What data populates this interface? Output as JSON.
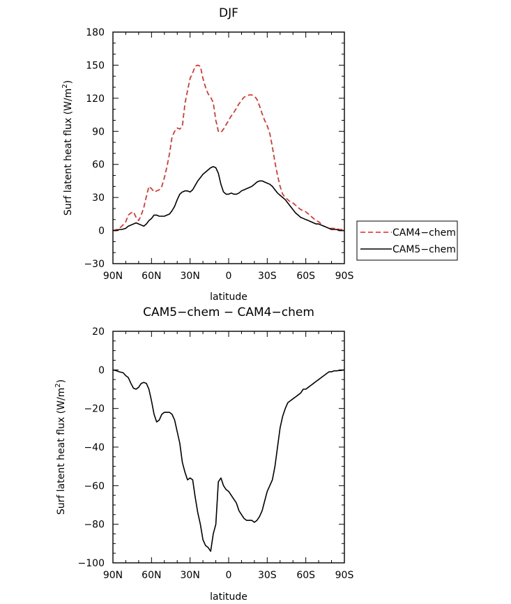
{
  "chart_data": [
    {
      "type": "line",
      "title": "DJF",
      "xlabel": "latitude",
      "ylabel": "Surf latent heat flux (W/m²)",
      "ylabel_main": "Surf latent heat flux (W/m",
      "ylabel_sup": "2",
      "ylabel_end": ")",
      "xlim": [
        90,
        -90
      ],
      "ylim": [
        -30,
        180
      ],
      "xticks": [
        90,
        60,
        30,
        0,
        -30,
        -60,
        -90
      ],
      "xtick_labels": [
        "90N",
        "60N",
        "30N",
        "0",
        "30S",
        "60S",
        "90S"
      ],
      "yticks": [
        -30,
        0,
        30,
        60,
        90,
        120,
        150,
        180
      ],
      "ytick_labels": [
        "−30",
        "0",
        "30",
        "60",
        "90",
        "120",
        "150",
        "180"
      ],
      "legend": {
        "placement": "right",
        "entries": [
          "CAM4−chem",
          "CAM5−chem"
        ]
      },
      "series": [
        {
          "name": "CAM4−chem",
          "color": "#e8211c",
          "dash": "dashed",
          "x": [
            90,
            87,
            85,
            83,
            80,
            78,
            76,
            74,
            72,
            70,
            68,
            66,
            64,
            62,
            60,
            58,
            56,
            54,
            52,
            50,
            48,
            46,
            44,
            42,
            40,
            38,
            36,
            34,
            32,
            30,
            28,
            26,
            24,
            22,
            20,
            18,
            16,
            14,
            12,
            10,
            8,
            6,
            4,
            2,
            0,
            -2,
            -4,
            -6,
            -8,
            -10,
            -12,
            -14,
            -16,
            -18,
            -20,
            -22,
            -24,
            -26,
            -28,
            -30,
            -32,
            -34,
            -36,
            -38,
            -40,
            -42,
            -44,
            -46,
            -48,
            -50,
            -52,
            -54,
            -56,
            -58,
            -60,
            -62,
            -64,
            -66,
            -68,
            -70,
            -72,
            -74,
            -76,
            -78,
            -80,
            -82,
            -84,
            -86,
            -88,
            -90
          ],
          "values": [
            0,
            1,
            2,
            4,
            8,
            14,
            16,
            17,
            12,
            9,
            14,
            21,
            31,
            40,
            38,
            35,
            36,
            37,
            40,
            48,
            58,
            70,
            85,
            90,
            93,
            92,
            95,
            115,
            127,
            138,
            143,
            149,
            150,
            149,
            138,
            130,
            124,
            121,
            116,
            100,
            90,
            89,
            92,
            96,
            100,
            104,
            107,
            111,
            115,
            118,
            121,
            122,
            123,
            123,
            122,
            119,
            113,
            106,
            100,
            95,
            88,
            76,
            62,
            50,
            40,
            33,
            30,
            28,
            26,
            25,
            23,
            21,
            19,
            18,
            17,
            15,
            13,
            11,
            9,
            8,
            6,
            4,
            3,
            2,
            2,
            2,
            2,
            1,
            1,
            0
          ]
        },
        {
          "name": "CAM5−chem",
          "color": "#000000",
          "dash": "solid",
          "x": [
            90,
            87,
            85,
            83,
            80,
            78,
            76,
            74,
            72,
            70,
            68,
            66,
            64,
            62,
            60,
            58,
            56,
            54,
            52,
            50,
            48,
            46,
            44,
            42,
            40,
            38,
            36,
            34,
            32,
            30,
            28,
            26,
            24,
            22,
            20,
            18,
            16,
            14,
            12,
            10,
            8,
            6,
            4,
            2,
            0,
            -2,
            -4,
            -6,
            -8,
            -10,
            -12,
            -14,
            -16,
            -18,
            -20,
            -22,
            -24,
            -26,
            -28,
            -30,
            -32,
            -34,
            -36,
            -38,
            -40,
            -42,
            -44,
            -46,
            -48,
            -50,
            -52,
            -54,
            -56,
            -58,
            -60,
            -62,
            -64,
            -66,
            -68,
            -70,
            -72,
            -74,
            -76,
            -78,
            -80,
            -82,
            -84,
            -86,
            -88,
            -90
          ],
          "values": [
            0,
            0,
            1,
            1,
            2,
            4,
            5,
            6,
            7,
            6,
            5,
            4,
            6,
            9,
            11,
            14,
            14,
            13,
            13,
            13,
            14,
            15,
            18,
            22,
            28,
            33,
            35,
            36,
            36,
            35,
            37,
            41,
            45,
            48,
            51,
            53,
            55,
            57,
            58,
            57,
            52,
            42,
            35,
            33,
            33,
            34,
            33,
            33,
            34,
            36,
            37,
            38,
            39,
            40,
            42,
            44,
            45,
            45,
            44,
            43,
            42,
            40,
            37,
            34,
            32,
            30,
            28,
            25,
            22,
            19,
            16,
            14,
            12,
            11,
            10,
            9,
            8,
            7,
            6,
            6,
            5,
            4,
            3,
            2,
            1,
            1,
            1,
            0,
            0,
            0
          ]
        }
      ]
    },
    {
      "type": "line",
      "title": "CAM5−chem − CAM4−chem",
      "xlabel": "latitude",
      "ylabel": "Surf latent heat flux (W/m²)",
      "ylabel_main": "Surf latent heat flux (W/m",
      "ylabel_sup": "2",
      "ylabel_end": ")",
      "xlim": [
        90,
        -90
      ],
      "ylim": [
        -100,
        20
      ],
      "xticks": [
        90,
        60,
        30,
        0,
        -30,
        -60,
        -90
      ],
      "xtick_labels": [
        "90N",
        "60N",
        "30N",
        "0",
        "30S",
        "60S",
        "90S"
      ],
      "yticks": [
        -100,
        -80,
        -60,
        -40,
        -20,
        0,
        20
      ],
      "ytick_labels": [
        "−100",
        "−80",
        "−60",
        "−40",
        "−20",
        "0",
        "20"
      ],
      "series": [
        {
          "color": "#000000",
          "dash": "solid",
          "x": [
            90,
            87,
            85,
            82,
            80,
            78,
            76,
            74,
            72,
            70,
            68,
            66,
            64,
            62,
            60,
            58,
            56,
            54,
            52,
            50,
            48,
            46,
            44,
            42,
            40,
            38,
            36,
            34,
            32,
            30,
            28,
            26,
            24,
            22,
            20,
            18,
            16,
            14,
            12,
            10,
            8,
            6,
            4,
            2,
            0,
            -2,
            -4,
            -6,
            -8,
            -10,
            -12,
            -14,
            -16,
            -18,
            -20,
            -22,
            -24,
            -26,
            -28,
            -30,
            -32,
            -34,
            -36,
            -38,
            -40,
            -42,
            -44,
            -46,
            -48,
            -50,
            -52,
            -54,
            -56,
            -58,
            -60,
            -62,
            -64,
            -66,
            -68,
            -70,
            -72,
            -74,
            -76,
            -78,
            -80,
            -82,
            -84,
            -86,
            -88,
            -90
          ],
          "values": [
            0,
            -0.5,
            -1,
            -1.5,
            -3,
            -4,
            -7,
            -9.5,
            -10,
            -9,
            -7,
            -6.5,
            -7,
            -10,
            -16,
            -23,
            -27,
            -26,
            -23,
            -22,
            -22,
            -22,
            -23,
            -26,
            -32,
            -38,
            -48,
            -53,
            -57,
            -56,
            -57,
            -66,
            -74,
            -80,
            -88,
            -91,
            -92,
            -94,
            -85,
            -80,
            -58,
            -56,
            -60,
            -62,
            -63,
            -65,
            -67,
            -69,
            -73,
            -75,
            -77,
            -78,
            -78,
            -78,
            -79,
            -78,
            -76,
            -73,
            -68,
            -63,
            -60,
            -57,
            -50,
            -40,
            -30,
            -24,
            -20,
            -17,
            -16,
            -15,
            -14,
            -13,
            -12,
            -10,
            -10,
            -9,
            -8,
            -7,
            -6,
            -5,
            -4,
            -3,
            -2,
            -1,
            -1,
            -0.5,
            -0.5,
            -0.3,
            -0.2,
            0
          ]
        }
      ]
    }
  ]
}
